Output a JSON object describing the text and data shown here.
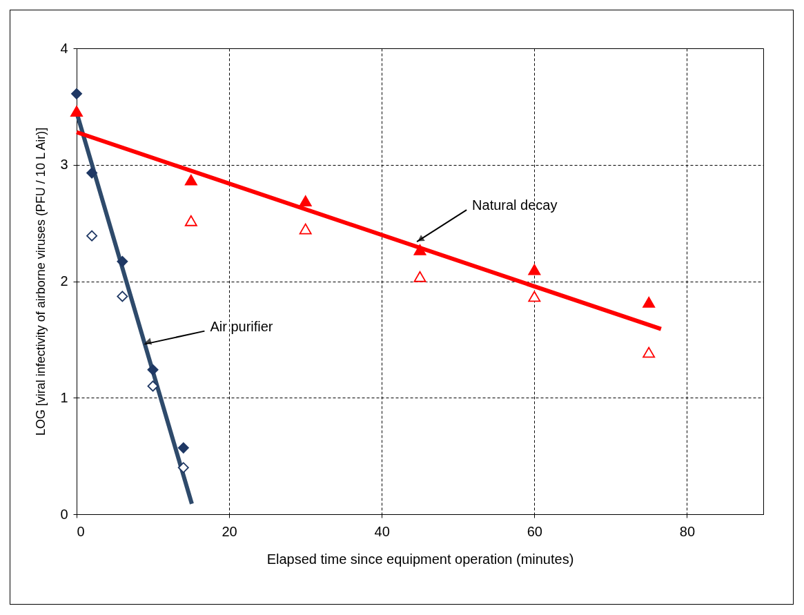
{
  "chart_data": {
    "type": "scatter",
    "xlabel": "Elapsed time since equipment operation (minutes)",
    "ylabel": "LOG [viral infectivity of airborne viruses (PFU / 10 L Air)]",
    "xlim": [
      0,
      90
    ],
    "xticks": [
      0,
      20,
      40,
      60,
      80
    ],
    "ylim": [
      0,
      4
    ],
    "yticks": [
      0,
      1,
      2,
      3,
      4
    ],
    "grid": true,
    "series": [
      {
        "type": "line",
        "color": "#2e4a6b",
        "x": [
          0,
          15.1
        ],
        "values": [
          3.45,
          0.09
        ],
        "marker": "none",
        "line_style": "solid"
      },
      {
        "type": "line",
        "color": "#ff0000",
        "x": [
          0,
          76.6
        ],
        "values": [
          3.28,
          1.59
        ],
        "marker": "none",
        "line_style": "solid"
      },
      {
        "color": "#1f3864",
        "marker": "diamond",
        "x": [
          0,
          2,
          6,
          10,
          14
        ],
        "values": [
          3.61,
          2.93,
          2.17,
          1.24,
          0.57
        ]
      },
      {
        "color": "#1f3864",
        "marker": "diamond",
        "x": [
          2,
          6,
          10,
          14
        ],
        "values": [
          2.39,
          1.87,
          1.1,
          0.4
        ]
      },
      {
        "color": "#ff0000",
        "marker": "triangle",
        "x": [
          0,
          15,
          30,
          45,
          60,
          75
        ],
        "values": [
          3.46,
          2.87,
          2.69,
          2.27,
          2.1,
          1.82
        ]
      },
      {
        "color": "#ff0000",
        "marker": "triangle",
        "x": [
          15,
          30,
          45,
          60,
          75
        ],
        "values": [
          2.52,
          2.45,
          2.04,
          1.87,
          1.39
        ]
      }
    ],
    "annotations": [
      {
        "text": "Natural decay",
        "x": 44.6,
        "y": 2.34
      },
      {
        "text": "Air purifier",
        "x": 8.9,
        "y": 1.46
      }
    ]
  }
}
